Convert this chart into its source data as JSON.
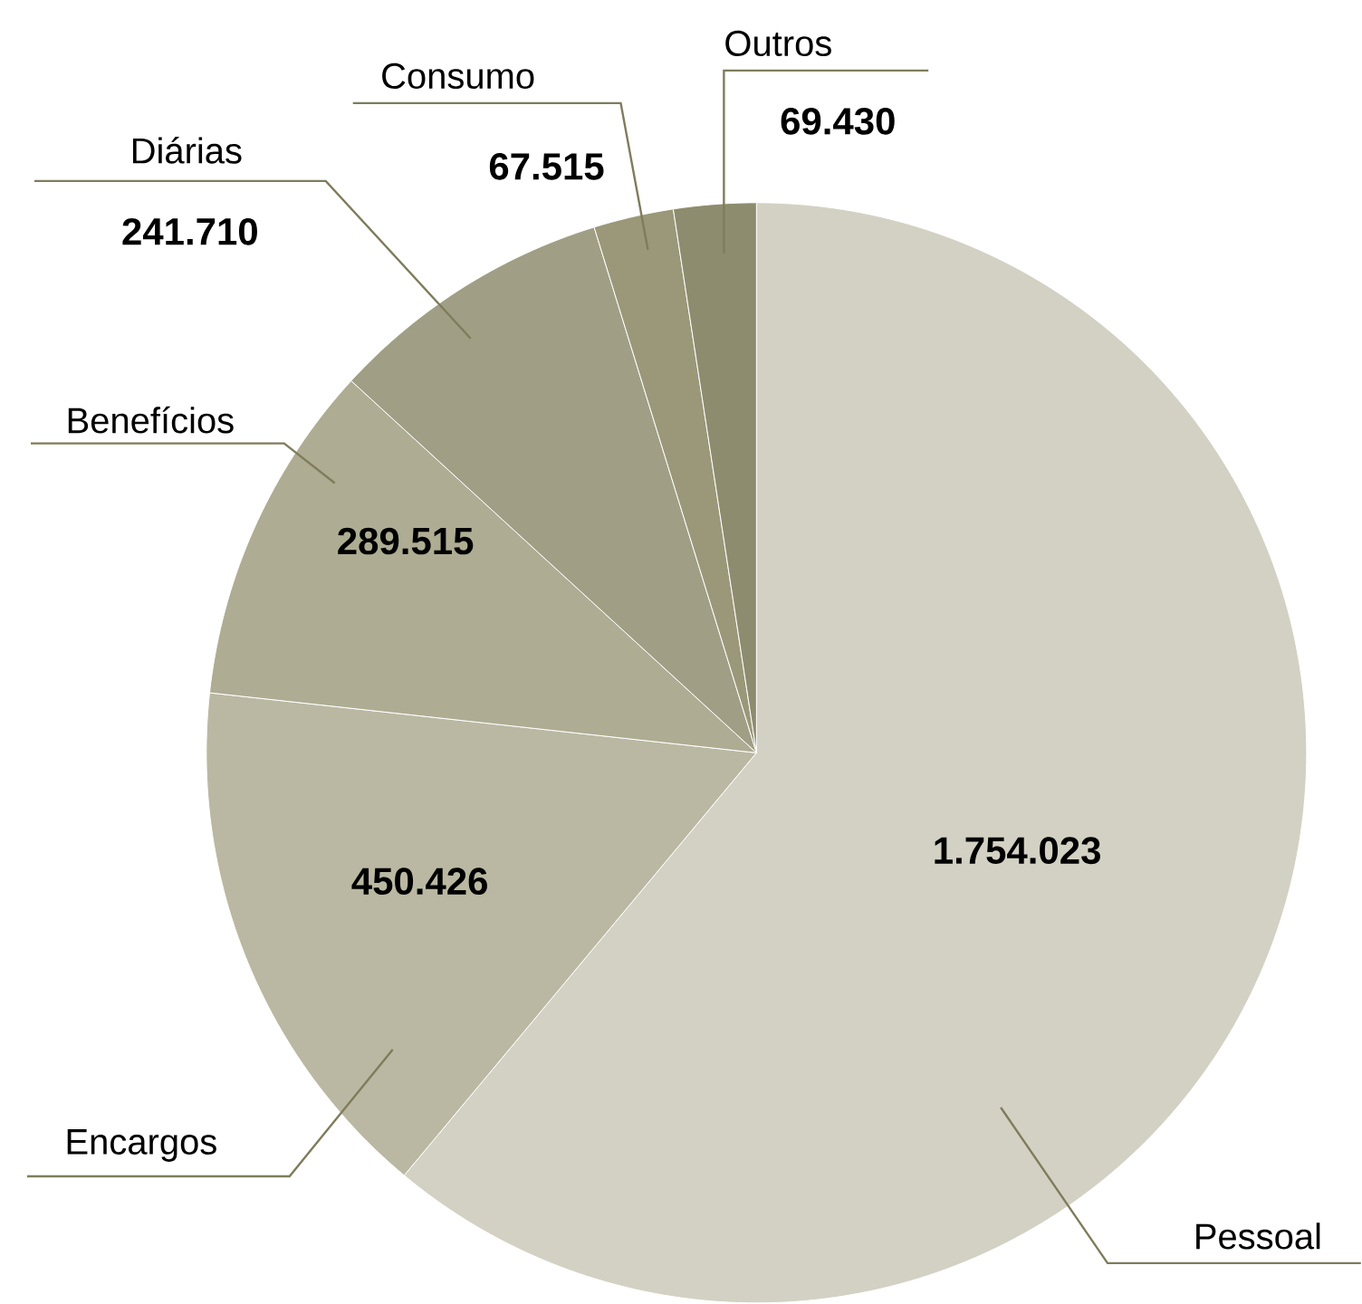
{
  "chart_data": {
    "type": "pie",
    "categories": [
      "Pessoal",
      "Encargos",
      "Benefícios",
      "Diárias",
      "Consumo",
      "Outros"
    ],
    "values": [
      1754023,
      450426,
      289515,
      241710,
      67515,
      69430
    ],
    "colors": [
      "#d3d1c3",
      "#bab8a2",
      "#aeac93",
      "#a09f85",
      "#9a9879",
      "#8e8c6e"
    ],
    "value_labels": [
      "1.754.023",
      "450.426",
      "289.515",
      "241.710",
      "67.515",
      "69.430"
    ]
  }
}
